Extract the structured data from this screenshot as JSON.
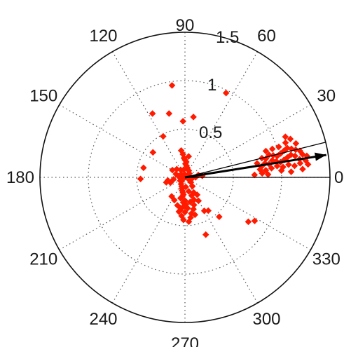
{
  "chart_data": {
    "type": "scatter",
    "projection": "polar",
    "angle_unit": "degrees",
    "rlim": [
      0,
      1.5
    ],
    "r_tick_labels": [
      "0.5",
      "1",
      "1.5"
    ],
    "theta_tick_labels": [
      "0",
      "30",
      "60",
      "90",
      "120",
      "150",
      "180",
      "210",
      "240",
      "270",
      "300",
      "330"
    ],
    "grid": true,
    "marker": "diamond",
    "marker_color": "#ff1a00",
    "cluster_a_points": [
      [
        0.0,
        0.0
      ],
      [
        0.04,
        200
      ],
      [
        0.06,
        215
      ],
      [
        0.05,
        230
      ],
      [
        0.08,
        240
      ],
      [
        0.1,
        250
      ],
      [
        0.12,
        255
      ],
      [
        0.14,
        258
      ],
      [
        0.16,
        262
      ],
      [
        0.18,
        265
      ],
      [
        0.2,
        262
      ],
      [
        0.22,
        258
      ],
      [
        0.24,
        270
      ],
      [
        0.26,
        266
      ],
      [
        0.28,
        272
      ],
      [
        0.3,
        268
      ],
      [
        0.32,
        275
      ],
      [
        0.34,
        262
      ],
      [
        0.36,
        270
      ],
      [
        0.38,
        280
      ],
      [
        0.4,
        265
      ],
      [
        0.42,
        278
      ],
      [
        0.44,
        268
      ],
      [
        0.1,
        275
      ],
      [
        0.15,
        285
      ],
      [
        0.2,
        290
      ],
      [
        0.25,
        292
      ],
      [
        0.3,
        288
      ],
      [
        0.18,
        300
      ],
      [
        0.22,
        305
      ],
      [
        0.28,
        300
      ],
      [
        0.12,
        310
      ],
      [
        0.08,
        320
      ],
      [
        0.05,
        330
      ],
      [
        0.07,
        345
      ],
      [
        0.04,
        20
      ],
      [
        0.06,
        40
      ],
      [
        0.08,
        60
      ],
      [
        0.1,
        75
      ],
      [
        0.12,
        82
      ],
      [
        0.14,
        88
      ],
      [
        0.16,
        85
      ],
      [
        0.18,
        90
      ],
      [
        0.2,
        93
      ],
      [
        0.24,
        95
      ],
      [
        0.28,
        98
      ],
      [
        0.22,
        80
      ],
      [
        0.09,
        120
      ],
      [
        0.12,
        135
      ],
      [
        0.15,
        150
      ],
      [
        0.1,
        160
      ],
      [
        0.07,
        170
      ],
      [
        0.12,
        190
      ],
      [
        0.16,
        200
      ],
      [
        0.18,
        190
      ],
      [
        0.2,
        195
      ],
      [
        0.3,
        255
      ],
      [
        0.36,
        260
      ],
      [
        0.4,
        285
      ],
      [
        0.46,
        275
      ],
      [
        0.34,
        285
      ],
      [
        0.26,
        245
      ],
      [
        0.24,
        235
      ],
      [
        0.08,
        100
      ],
      [
        0.05,
        140
      ],
      [
        0.03,
        90
      ],
      [
        0.02,
        180
      ],
      [
        0.11,
        0
      ],
      [
        0.14,
        10
      ],
      [
        0.18,
        5
      ],
      [
        0.26,
        282
      ],
      [
        0.32,
        262
      ]
    ],
    "cluster_b_points": [
      [
        0.8,
        8
      ],
      [
        0.84,
        10
      ],
      [
        0.88,
        9
      ],
      [
        0.92,
        11
      ],
      [
        0.96,
        10
      ],
      [
        1.0,
        9
      ],
      [
        1.04,
        10
      ],
      [
        1.08,
        11
      ],
      [
        1.12,
        12
      ],
      [
        1.16,
        11
      ],
      [
        1.2,
        9
      ],
      [
        1.24,
        11
      ],
      [
        1.28,
        10
      ],
      [
        0.82,
        14
      ],
      [
        0.86,
        13
      ],
      [
        0.9,
        15
      ],
      [
        0.94,
        14
      ],
      [
        0.98,
        13
      ],
      [
        1.02,
        14
      ],
      [
        1.06,
        15
      ],
      [
        1.1,
        16
      ],
      [
        1.14,
        15
      ],
      [
        1.18,
        14
      ],
      [
        1.22,
        13
      ],
      [
        0.84,
        5
      ],
      [
        0.9,
        6
      ],
      [
        0.96,
        7
      ],
      [
        1.02,
        6
      ],
      [
        1.08,
        7
      ],
      [
        1.14,
        6
      ],
      [
        1.2,
        7
      ],
      [
        1.26,
        8
      ],
      [
        0.88,
        18
      ],
      [
        0.95,
        18
      ],
      [
        1.02,
        18
      ],
      [
        1.1,
        19
      ],
      [
        1.16,
        20
      ],
      [
        1.12,
        22
      ],
      [
        1.2,
        17
      ],
      [
        0.76,
        11
      ],
      [
        0.78,
        6
      ],
      [
        0.72,
        2
      ],
      [
        0.8,
        3
      ],
      [
        0.86,
        2
      ],
      [
        1.0,
        4
      ],
      [
        1.1,
        3
      ],
      [
        1.22,
        4
      ],
      [
        1.28,
        6
      ]
    ],
    "outlier_points": [
      [
        0.74,
        117
      ],
      [
        0.96,
        98
      ],
      [
        0.97,
        64
      ],
      [
        0.68,
        104
      ],
      [
        0.58,
        92
      ],
      [
        0.63,
        82
      ],
      [
        0.42,
        142
      ],
      [
        0.48,
        118
      ],
      [
        0.44,
        167
      ],
      [
        0.46,
        182
      ],
      [
        0.4,
        -60
      ],
      [
        0.54,
        -49
      ],
      [
        0.42,
        -55
      ],
      [
        0.63,
        -70
      ],
      [
        0.8,
        -35
      ],
      [
        0.85,
        -32
      ]
    ],
    "arrow_vector": {
      "r": 1.48,
      "theta": 9
    },
    "arrow_edges": [
      {
        "r": 1.5,
        "theta": 14
      },
      {
        "r": 1.5,
        "theta": 0
      }
    ]
  }
}
